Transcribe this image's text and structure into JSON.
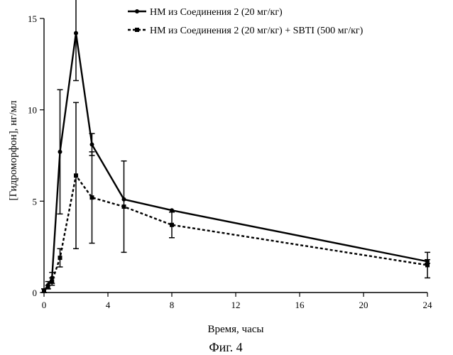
{
  "chart_data": {
    "type": "line",
    "caption": "Фиг. 4",
    "xlabel": "Время, часы",
    "ylabel": "[Гидроморфон], нг/мл",
    "xlim": [
      0,
      24
    ],
    "ylim": [
      0,
      15
    ],
    "xticks": [
      0,
      4,
      8,
      12,
      16,
      20,
      24
    ],
    "yticks": [
      0,
      5,
      10,
      15
    ],
    "grid": false,
    "legend_position": "top-right",
    "series": [
      {
        "name": "НМ из Соединения 2 (20 мг/кг)",
        "style": "solid",
        "marker": "circle",
        "color": "#000000",
        "x": [
          0,
          0.25,
          0.5,
          1,
          2,
          3,
          5,
          8,
          24
        ],
        "y": [
          0.1,
          0.4,
          0.8,
          7.7,
          14.2,
          8.1,
          5.1,
          4.5,
          1.7
        ],
        "error": [
          0.1,
          0.2,
          0.3,
          3.4,
          2.6,
          0.6,
          0,
          0,
          0.1
        ]
      },
      {
        "name": "НМ из Соединения 2 (20 мг/кг) + SBTI (500 мг/кг)",
        "style": "dashed",
        "marker": "square",
        "color": "#000000",
        "x": [
          0,
          0.25,
          0.5,
          1,
          2,
          3,
          5,
          8,
          24
        ],
        "y": [
          0.1,
          0.3,
          0.6,
          1.9,
          6.4,
          5.2,
          4.7,
          3.7,
          1.5
        ],
        "error": [
          0.1,
          0.1,
          0.2,
          0.5,
          4.0,
          2.5,
          2.5,
          0.7,
          0.7
        ]
      }
    ]
  }
}
